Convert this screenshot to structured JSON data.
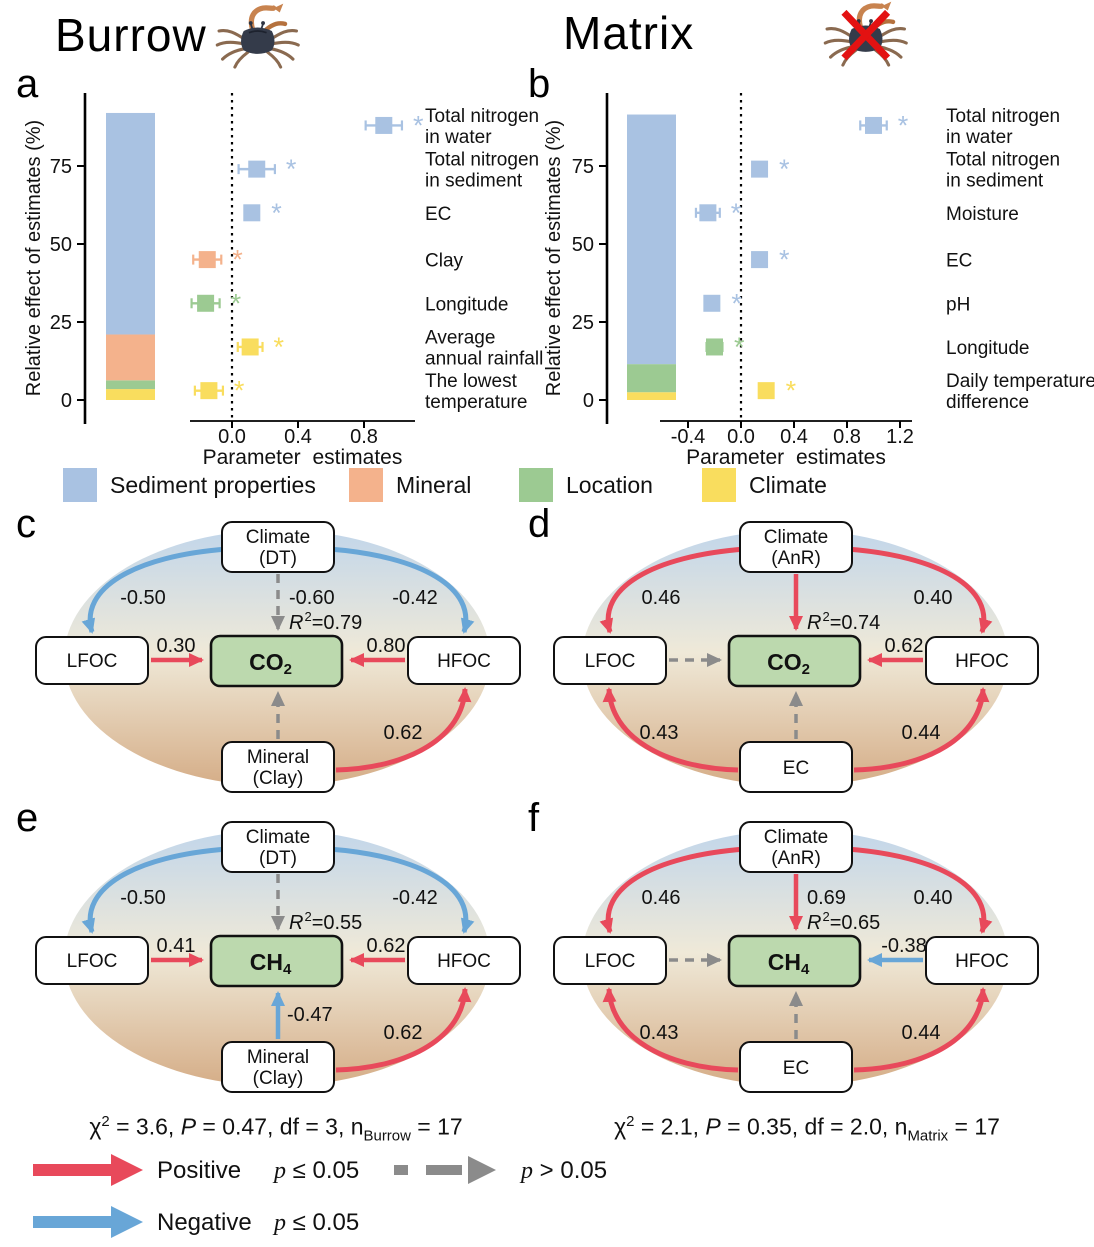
{
  "header": {
    "burrow_title": "Burrow",
    "matrix_title": "Matrix"
  },
  "panel_letters": {
    "a": "a",
    "b": "b",
    "c": "c",
    "d": "d",
    "e": "e",
    "f": "f"
  },
  "colors": {
    "sediment": "#a9c2e2",
    "mineral": "#f4b28c",
    "location": "#9cca92",
    "climate": "#f9dd5e",
    "positive_red": "#e8495b",
    "negative_blue": "#68a6d7",
    "nonsig_gray": "#8b8b8b",
    "gas_box_green": "#bcd9ae",
    "ellipse_top": "#c2d6ea",
    "ellipse_mid": "#efe9d8",
    "ellipse_bottom": "#d5ad87",
    "axis_black": "#000000",
    "cross_red": "#e31212"
  },
  "category_legend": [
    {
      "label": "Sediment properties",
      "color_key": "sediment"
    },
    {
      "label": "Mineral",
      "color_key": "mineral"
    },
    {
      "label": "Location",
      "color_key": "location"
    },
    {
      "label": "Climate",
      "color_key": "climate"
    }
  ],
  "chart_data": [
    {
      "type": "dot-whisker+stacked-bar",
      "panel": "a",
      "group": "Burrow",
      "ylabel": "Relative effect of estimates (%)",
      "xlabel": "Parameter  estimates",
      "yticks": [
        0,
        25,
        50,
        75
      ],
      "xticks": [
        0.0,
        0.4,
        0.8
      ],
      "xlim": [
        -0.25,
        1.1
      ],
      "ylim": [
        0,
        97
      ],
      "sig_marker": "*",
      "bar_segments": [
        {
          "category": "Climate",
          "color_key": "climate",
          "from": 0,
          "to": 3.5
        },
        {
          "category": "Location",
          "color_key": "location",
          "from": 3.5,
          "to": 6.3
        },
        {
          "category": "Mineral",
          "color_key": "mineral",
          "from": 6.3,
          "to": 21
        },
        {
          "category": "Sediment properties",
          "color_key": "sediment",
          "from": 21,
          "to": 92
        }
      ],
      "points": [
        {
          "lines": [
            "Total nitrogen",
            "in water"
          ],
          "category": "Sediment properties",
          "color_key": "sediment",
          "estimate": 0.92,
          "error": 0.11,
          "y_pct": 88,
          "significant": true
        },
        {
          "lines": [
            "Total nitrogen",
            "in sediment"
          ],
          "category": "Sediment properties",
          "color_key": "sediment",
          "estimate": 0.15,
          "error": 0.11,
          "y_pct": 74,
          "significant": true
        },
        {
          "lines": [
            "EC"
          ],
          "category": "Sediment properties",
          "color_key": "sediment",
          "estimate": 0.12,
          "error": 0.02,
          "y_pct": 60,
          "significant": true
        },
        {
          "lines": [
            "Clay"
          ],
          "category": "Mineral",
          "color_key": "mineral",
          "estimate": -0.15,
          "error": 0.085,
          "y_pct": 45,
          "significant": true
        },
        {
          "lines": [
            "Longitude"
          ],
          "category": "Location",
          "color_key": "location",
          "estimate": -0.16,
          "error": 0.085,
          "y_pct": 31,
          "significant": true
        },
        {
          "lines": [
            "Average",
            "annual rainfall"
          ],
          "category": "Climate",
          "color_key": "climate",
          "estimate": 0.11,
          "error": 0.075,
          "y_pct": 17,
          "significant": true
        },
        {
          "lines": [
            "The lowest",
            "temperature"
          ],
          "category": "Climate",
          "color_key": "climate",
          "estimate": -0.14,
          "error": 0.085,
          "y_pct": 3,
          "significant": true
        }
      ]
    },
    {
      "type": "dot-whisker+stacked-bar",
      "panel": "b",
      "group": "Matrix",
      "ylabel": "Relative effect of estimates (%)",
      "xlabel": "Parameter  estimates",
      "yticks": [
        0,
        25,
        50,
        75
      ],
      "xticks": [
        -0.4,
        0.0,
        0.4,
        0.8,
        1.2
      ],
      "xlim": [
        -0.6,
        1.3
      ],
      "ylim": [
        0,
        97
      ],
      "sig_marker": "*",
      "bar_segments": [
        {
          "category": "Climate",
          "color_key": "climate",
          "from": 0,
          "to": 2.5
        },
        {
          "category": "Location",
          "color_key": "location",
          "from": 2.5,
          "to": 11.5
        },
        {
          "category": "Sediment properties",
          "color_key": "sediment",
          "from": 11.5,
          "to": 91.5
        }
      ],
      "points": [
        {
          "lines": [
            "Total nitrogen",
            "in water"
          ],
          "category": "Sediment properties",
          "color_key": "sediment",
          "estimate": 1.0,
          "error": 0.1,
          "y_pct": 88,
          "significant": true
        },
        {
          "lines": [
            "Total nitrogen",
            "in sediment"
          ],
          "category": "Sediment properties",
          "color_key": "sediment",
          "estimate": 0.14,
          "error": 0.05,
          "y_pct": 74,
          "significant": true
        },
        {
          "lines": [
            "Moisture"
          ],
          "category": "Sediment properties",
          "color_key": "sediment",
          "estimate": -0.25,
          "error": 0.09,
          "y_pct": 60,
          "significant": true
        },
        {
          "lines": [
            "EC"
          ],
          "category": "Sediment properties",
          "color_key": "sediment",
          "estimate": 0.14,
          "error": 0.02,
          "y_pct": 45,
          "significant": true
        },
        {
          "lines": [
            "pH"
          ],
          "category": "Sediment properties",
          "color_key": "sediment",
          "estimate": -0.22,
          "error": 0.02,
          "y_pct": 31,
          "significant": true
        },
        {
          "lines": [
            "Longitude"
          ],
          "category": "Location",
          "color_key": "location",
          "estimate": -0.2,
          "error": 0.06,
          "y_pct": 17,
          "significant": true
        },
        {
          "lines": [
            "Daily temperature",
            "difference"
          ],
          "category": "Climate",
          "color_key": "climate",
          "estimate": 0.19,
          "error": 0.05,
          "y_pct": 3,
          "significant": true
        }
      ]
    }
  ],
  "sem": {
    "r2_label": {
      "r": "R",
      "sup": "2",
      "eq": "="
    },
    "panels": [
      {
        "id": "c",
        "top_box": {
          "line1": "Climate",
          "line2": "(DT)"
        },
        "left_box": "LFOC",
        "right_box": "HFOC",
        "center_box": {
          "base": "CO",
          "sub": "2"
        },
        "bottom_box": {
          "line1": "Mineral",
          "line2": "(Clay)"
        },
        "r2_value": "0.79",
        "edges": {
          "climate_lfoc": {
            "value": "-0.50",
            "color": "blue",
            "style": "solid"
          },
          "climate_hfoc": {
            "value": "-0.42",
            "color": "blue",
            "style": "solid"
          },
          "climate_center": {
            "value": "-0.60",
            "color": "gray",
            "style": "dashed"
          },
          "lfoc_center": {
            "value": "0.30",
            "color": "red",
            "style": "solid"
          },
          "hfoc_center": {
            "value": "0.80",
            "color": "red",
            "style": "solid"
          },
          "bottom_center": {
            "value": "",
            "color": "gray",
            "style": "dashed"
          },
          "bottom_lfoc": null,
          "bottom_hfoc": {
            "value": "0.62",
            "color": "red",
            "style": "solid"
          }
        }
      },
      {
        "id": "d",
        "top_box": {
          "line1": "Climate",
          "line2": "(AnR)"
        },
        "left_box": "LFOC",
        "right_box": "HFOC",
        "center_box": {
          "base": "CO",
          "sub": "2"
        },
        "bottom_box": {
          "line1": "EC",
          "line2": ""
        },
        "r2_value": "0.74",
        "edges": {
          "climate_lfoc": {
            "value": "0.46",
            "color": "red",
            "style": "solid"
          },
          "climate_hfoc": {
            "value": "0.40",
            "color": "red",
            "style": "solid"
          },
          "climate_center": {
            "value": "",
            "color": "red",
            "style": "solid"
          },
          "lfoc_center": {
            "value": "",
            "color": "gray",
            "style": "dashed"
          },
          "hfoc_center": {
            "value": "0.62",
            "color": "red",
            "style": "solid"
          },
          "bottom_center": {
            "value": "",
            "color": "gray",
            "style": "dashed"
          },
          "bottom_lfoc": {
            "value": "0.43",
            "color": "red",
            "style": "solid"
          },
          "bottom_hfoc": {
            "value": "0.44",
            "color": "red",
            "style": "solid"
          }
        }
      },
      {
        "id": "e",
        "top_box": {
          "line1": "Climate",
          "line2": "(DT)"
        },
        "left_box": "LFOC",
        "right_box": "HFOC",
        "center_box": {
          "base": "CH",
          "sub": "4"
        },
        "bottom_box": {
          "line1": "Mineral",
          "line2": "(Clay)"
        },
        "r2_value": "0.55",
        "edges": {
          "climate_lfoc": {
            "value": "-0.50",
            "color": "blue",
            "style": "solid"
          },
          "climate_hfoc": {
            "value": "-0.42",
            "color": "blue",
            "style": "solid"
          },
          "climate_center": {
            "value": "",
            "color": "gray",
            "style": "dashed"
          },
          "lfoc_center": {
            "value": "0.41",
            "color": "red",
            "style": "solid"
          },
          "hfoc_center": {
            "value": "0.62",
            "color": "red",
            "style": "solid"
          },
          "bottom_center": {
            "value": "-0.47",
            "color": "blue",
            "style": "solid"
          },
          "bottom_lfoc": null,
          "bottom_hfoc": {
            "value": "0.62",
            "color": "red",
            "style": "solid"
          }
        }
      },
      {
        "id": "f",
        "top_box": {
          "line1": "Climate",
          "line2": "(AnR)"
        },
        "left_box": "LFOC",
        "right_box": "HFOC",
        "center_box": {
          "base": "CH",
          "sub": "4"
        },
        "bottom_box": {
          "line1": "EC",
          "line2": ""
        },
        "r2_value": "0.65",
        "edges": {
          "climate_lfoc": {
            "value": "0.46",
            "color": "red",
            "style": "solid"
          },
          "climate_hfoc": {
            "value": "0.40",
            "color": "red",
            "style": "solid"
          },
          "climate_center": {
            "value": "0.69",
            "color": "red",
            "style": "solid"
          },
          "lfoc_center": {
            "value": "",
            "color": "gray",
            "style": "dashed"
          },
          "hfoc_center": {
            "value": "-0.38",
            "color": "blue",
            "style": "solid"
          },
          "bottom_center": {
            "value": "",
            "color": "gray",
            "style": "dashed"
          },
          "bottom_lfoc": {
            "value": "0.43",
            "color": "red",
            "style": "solid"
          },
          "bottom_hfoc": {
            "value": "0.44",
            "color": "red",
            "style": "solid"
          }
        }
      }
    ],
    "stats": {
      "burrow": {
        "chi": "χ",
        "sup": "2",
        "mid": " = 3.6, ",
        "p": "P",
        "tail": " = 0.47, df = 3, n",
        "sub": "Burrow",
        "end": " = 17"
      },
      "matrix": {
        "chi": "χ",
        "sup": "2",
        "mid": " = 2.1, ",
        "p": "P",
        "tail": " = 0.35, df = 2.0, n",
        "sub": "Matrix",
        "end": " = 17"
      }
    }
  },
  "arrow_legend": {
    "positive": {
      "label": "Positive",
      "p_var": "p",
      "p_rest": " ≤ 0.05"
    },
    "nonsig": {
      "p_var": "p",
      "p_rest": " > 0.05"
    },
    "negative": {
      "label": "Negative",
      "p_var": "p",
      "p_rest": " ≤ 0.05"
    }
  }
}
